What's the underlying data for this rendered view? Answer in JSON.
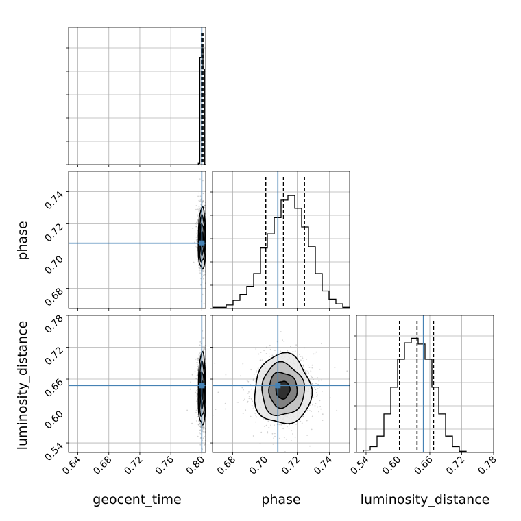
{
  "chart_data": {
    "type": "corner",
    "parameters": [
      "geocent_time",
      "phase",
      "luminosity_distance"
    ],
    "truths": {
      "geocent_time": 0.8,
      "phase": 0.708,
      "luminosity_distance": 0.648
    },
    "ranges": {
      "geocent_time": [
        0.628,
        0.805
      ],
      "phase": [
        0.6675,
        0.7525
      ],
      "luminosity_distance": [
        0.522,
        0.78
      ]
    },
    "ticks": {
      "geocent_time": [
        "0.64",
        "0.68",
        "0.72",
        "0.76",
        "0.80"
      ],
      "phase": [
        "0.68",
        "0.70",
        "0.72",
        "0.74"
      ],
      "luminosity_distance": [
        "0.54",
        "0.60",
        "0.66",
        "0.72",
        "0.78"
      ]
    },
    "axis_labels": {
      "bottom": [
        "geocent_time",
        "phase",
        "luminosity_distance"
      ],
      "left": [
        "phase",
        "luminosity_distance"
      ]
    },
    "quantiles": {
      "geocent_time": [
        0.7995,
        0.8005,
        0.8015
      ],
      "phase": [
        0.7005,
        0.7115,
        0.7245
      ],
      "luminosity_distance": [
        0.603,
        0.636,
        0.667
      ]
    },
    "histograms": {
      "geocent_time": {
        "edges": [
          0.7955,
          0.7975,
          0.7995,
          0.8015,
          0.8035,
          0.8055
        ],
        "counts": [
          0.01,
          0.92,
          1.0,
          0.82,
          0.0
        ]
      },
      "phase": {
        "edges": [
          0.6675,
          0.67175,
          0.676,
          0.68025,
          0.6845,
          0.68875,
          0.693,
          0.69725,
          0.7015,
          0.70575,
          0.71,
          0.71425,
          0.7185,
          0.72275,
          0.727,
          0.73125,
          0.7355,
          0.73975,
          0.744,
          0.74825,
          0.7525
        ],
        "counts": [
          0.01,
          0.01,
          0.03,
          0.07,
          0.12,
          0.19,
          0.3,
          0.52,
          0.64,
          0.78,
          0.93,
          0.97,
          0.86,
          0.7,
          0.53,
          0.3,
          0.15,
          0.08,
          0.04,
          0.01
        ]
      },
      "luminosity_distance": {
        "edges": [
          0.522,
          0.5349,
          0.5478,
          0.5607,
          0.5736,
          0.5865,
          0.5994,
          0.6123,
          0.6252,
          0.6381,
          0.651,
          0.6639,
          0.6768,
          0.6897,
          0.7026,
          0.7155,
          0.7284,
          0.7413,
          0.7542,
          0.7671,
          0.78
        ],
        "counts": [
          0.0,
          0.02,
          0.05,
          0.14,
          0.33,
          0.56,
          0.8,
          0.94,
          0.98,
          0.93,
          0.8,
          0.56,
          0.33,
          0.14,
          0.05,
          0.01,
          0.0,
          0.0,
          0.0,
          0.0
        ]
      }
    },
    "joint": {
      "phase_vs_geocent_time": {
        "center": [
          0.8004,
          0.7105
        ],
        "sigma": [
          0.0025,
          0.0095
        ]
      },
      "luminosity_distance_vs_geocent_time": {
        "center": [
          0.8004,
          0.64
        ],
        "sigma": [
          0.0025,
          0.034
        ]
      },
      "luminosity_distance_vs_phase": {
        "center": [
          0.711,
          0.64
        ],
        "sigma": [
          0.0088,
          0.033
        ]
      }
    },
    "colors": {
      "truth": "#4682b4",
      "hist": "#000000",
      "grid": "#b0b0b0",
      "points": "#7f7f7f"
    },
    "grid": true
  }
}
